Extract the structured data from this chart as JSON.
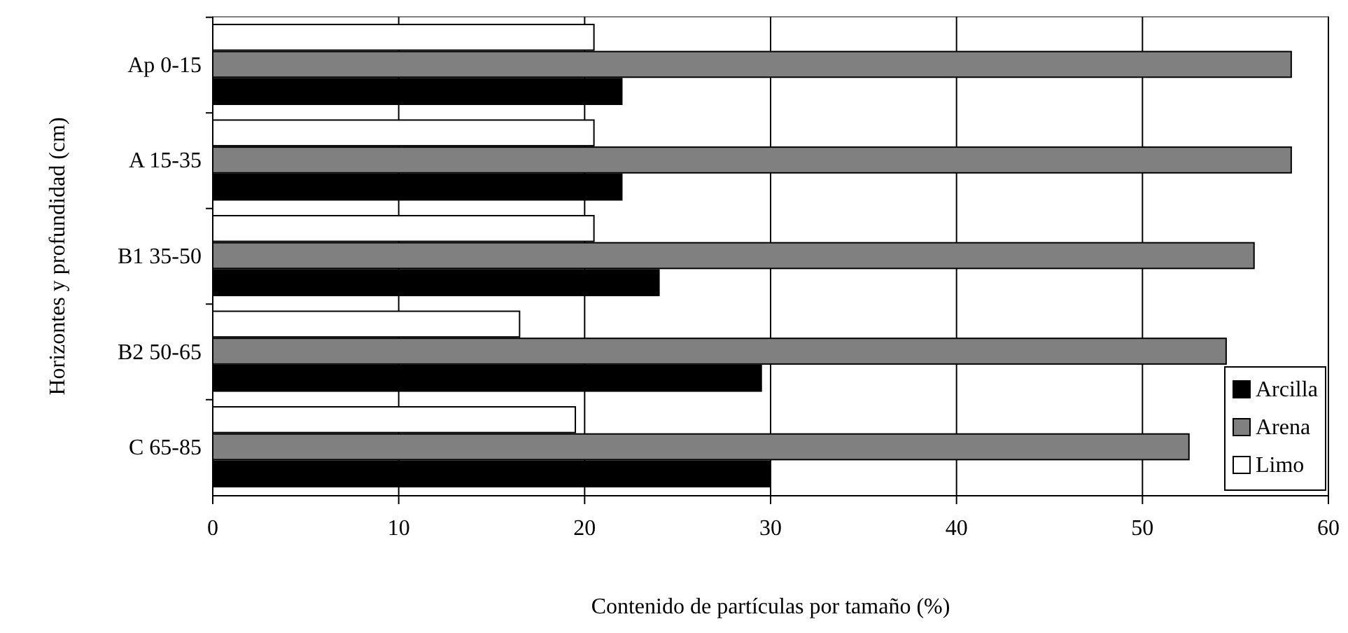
{
  "chart_data": {
    "type": "bar",
    "orientation": "horizontal",
    "xlabel": "Contenido de partículas por tamaño (%)",
    "ylabel": "Horizontes y profundidad (cm)",
    "categories": [
      "Ap 0-15",
      "A  15-35",
      "B1 35-50",
      "B2 50-65",
      "C  65-85"
    ],
    "series": [
      {
        "name": "Arcilla",
        "color": "#000000",
        "values": [
          22,
          22,
          24,
          29.5,
          30
        ]
      },
      {
        "name": "Arena",
        "color": "#808080",
        "values": [
          58,
          58,
          56,
          54.5,
          52.5
        ]
      },
      {
        "name": "Limo",
        "color": "#ffffff",
        "values": [
          20.5,
          20.5,
          20.5,
          16.5,
          19.5
        ]
      }
    ],
    "xlim": [
      0,
      60
    ],
    "xticks": [
      0,
      10,
      20,
      30,
      40,
      50,
      60
    ],
    "grid": "x",
    "legend": "bottom right"
  }
}
